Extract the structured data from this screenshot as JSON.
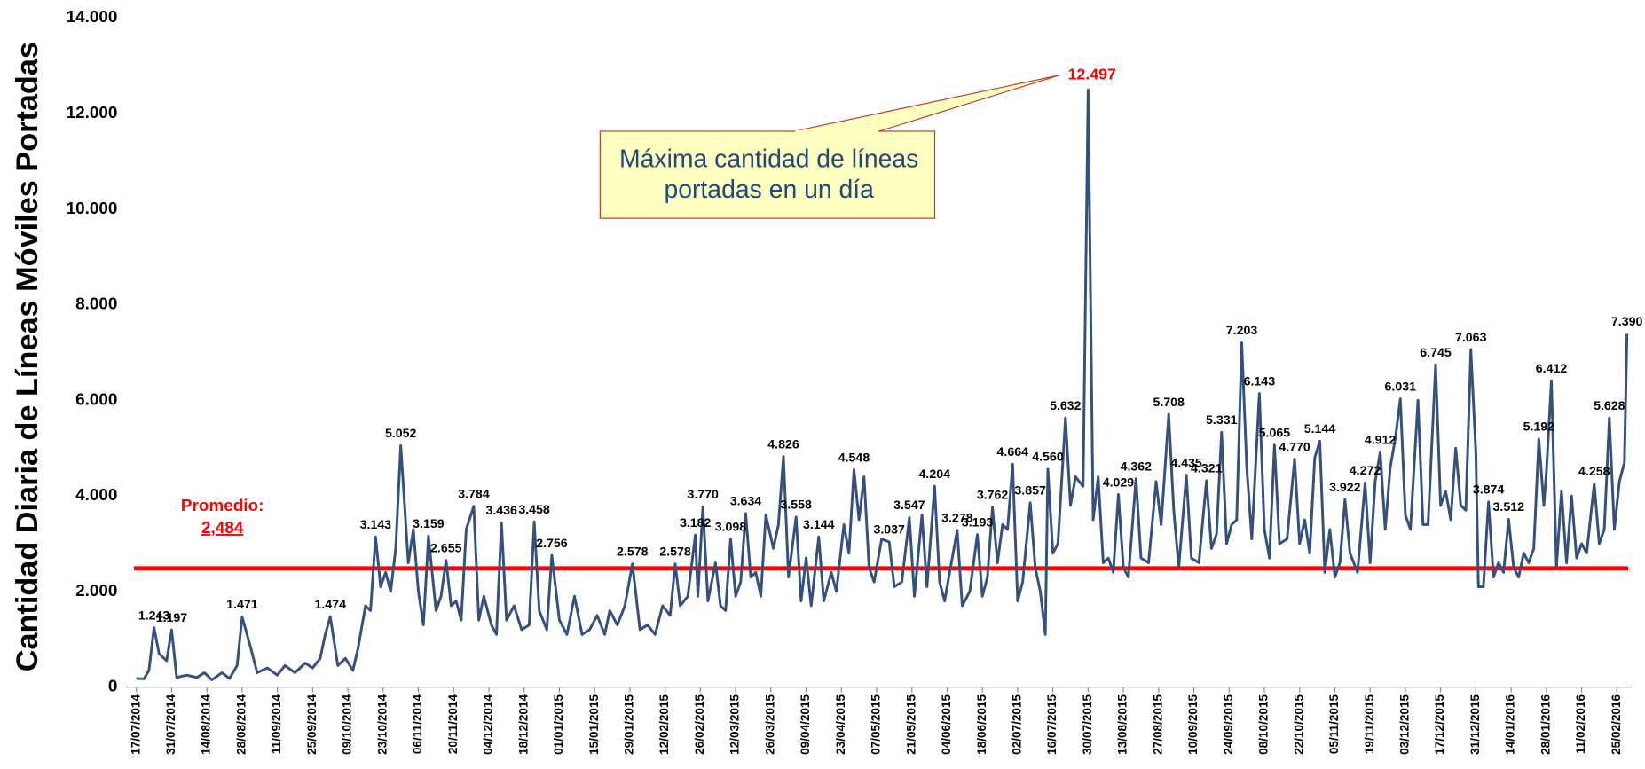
{
  "chart_data": {
    "type": "line",
    "y_label": "Cantidad Diaria de Líneas Móviles Portadas",
    "color": "#34507f",
    "xlim": [
      "16/07/2014",
      "29/02/2016"
    ],
    "xticks": [
      "17/07/2014",
      "31/07/2014",
      "14/08/2014",
      "28/08/2014",
      "11/09/2014",
      "25/09/2014",
      "09/10/2014",
      "23/10/2014",
      "06/11/2014",
      "20/11/2014",
      "04/12/2014",
      "18/12/2014",
      "01/01/2015",
      "15/01/2015",
      "29/01/2015",
      "12/02/2015",
      "26/02/2015",
      "12/03/2015",
      "26/03/2015",
      "09/04/2015",
      "23/04/2015",
      "07/05/2015",
      "21/05/2015",
      "04/06/2015",
      "18/06/2015",
      "02/07/2015",
      "16/07/2015",
      "30/07/2015",
      "13/08/2015",
      "27/08/2015",
      "10/09/2015",
      "24/09/2015",
      "08/10/2015",
      "22/10/2015",
      "05/11/2015",
      "19/11/2015",
      "03/12/2015",
      "17/12/2015",
      "31/12/2015",
      "14/01/2016",
      "28/01/2016",
      "11/02/2016",
      "25/02/2016"
    ],
    "ylim": [
      0,
      14000
    ],
    "yticks": [
      0,
      {
        "value": 2000,
        "label": "2.000"
      },
      {
        "value": 4000,
        "label": "4.000"
      },
      {
        "value": 6000,
        "label": "6.000"
      },
      {
        "value": 8000,
        "label": "8.000"
      },
      {
        "value": 10000,
        "label": "10.000"
      },
      {
        "value": 12000,
        "label": "12.000"
      },
      {
        "value": 14000,
        "label": "14.000"
      }
    ],
    "x": [
      "17/07/2014",
      "20/07/2014",
      "22/07/2014",
      "24/07/2014",
      "26/07/2014",
      "29/07/2014",
      "31/07/2014",
      "02/08/2014",
      "06/08/2014",
      "10/08/2014",
      "13/08/2014",
      "16/08/2014",
      "20/08/2014",
      "23/08/2014",
      "26/08/2014",
      "28/08/2014",
      "31/08/2014",
      "03/09/2014",
      "07/09/2014",
      "11/09/2014",
      "14/09/2014",
      "18/09/2014",
      "22/09/2014",
      "25/09/2014",
      "28/09/2014",
      "30/09/2014",
      "02/10/2014",
      "05/10/2014",
      "08/10/2014",
      "11/10/2014",
      "13/10/2014",
      "16/10/2014",
      "18/10/2014",
      "20/10/2014",
      "22/10/2014",
      "24/10/2014",
      "26/10/2014",
      "28/10/2014",
      "30/10/2014",
      "02/11/2014",
      "04/11/2014",
      "06/11/2014",
      "08/11/2014",
      "10/11/2014",
      "13/11/2014",
      "15/11/2014",
      "17/11/2014",
      "19/11/2014",
      "21/11/2014",
      "23/11/2014",
      "25/11/2014",
      "28/11/2014",
      "30/11/2014",
      "02/12/2014",
      "05/12/2014",
      "07/12/2014",
      "09/12/2014",
      "11/12/2014",
      "14/12/2014",
      "17/12/2014",
      "20/12/2014",
      "22/12/2014",
      "24/12/2014",
      "27/12/2014",
      "29/12/2014",
      "01/01/2015",
      "04/01/2015",
      "07/01/2015",
      "10/01/2015",
      "13/01/2015",
      "16/01/2015",
      "19/01/2015",
      "21/01/2015",
      "24/01/2015",
      "27/01/2015",
      "30/01/2015",
      "02/02/2015",
      "05/02/2015",
      "08/02/2015",
      "11/02/2015",
      "14/02/2015",
      "16/02/2015",
      "18/02/2015",
      "21/02/2015",
      "24/02/2015",
      "25/02/2015",
      "27/02/2015",
      "01/03/2015",
      "04/03/2015",
      "06/03/2015",
      "08/03/2015",
      "10/03/2015",
      "12/03/2015",
      "14/03/2015",
      "16/03/2015",
      "18/03/2015",
      "20/03/2015",
      "22/03/2015",
      "24/03/2015",
      "27/03/2015",
      "29/03/2015",
      "31/03/2015",
      "02/04/2015",
      "05/04/2015",
      "07/04/2015",
      "09/04/2015",
      "11/04/2015",
      "14/04/2015",
      "16/04/2015",
      "19/04/2015",
      "21/04/2015",
      "24/04/2015",
      "26/04/2015",
      "28/04/2015",
      "30/04/2015",
      "02/05/2015",
      "04/05/2015",
      "06/05/2015",
      "09/05/2015",
      "12/05/2015",
      "14/05/2015",
      "17/05/2015",
      "20/05/2015",
      "22/05/2015",
      "25/05/2015",
      "27/05/2015",
      "30/05/2015",
      "01/06/2015",
      "03/06/2015",
      "05/06/2015",
      "08/06/2015",
      "10/06/2015",
      "13/06/2015",
      "16/06/2015",
      "18/06/2015",
      "20/06/2015",
      "22/06/2015",
      "24/06/2015",
      "26/06/2015",
      "28/06/2015",
      "30/06/2015",
      "02/07/2015",
      "04/07/2015",
      "07/07/2015",
      "09/07/2015",
      "11/07/2015",
      "13/07/2015",
      "14/07/2015",
      "16/07/2015",
      "18/07/2015",
      "21/07/2015",
      "23/07/2015",
      "25/07/2015",
      "28/07/2015",
      "30/07/2015",
      "01/08/2015",
      "03/08/2015",
      "05/08/2015",
      "07/08/2015",
      "09/08/2015",
      "11/08/2015",
      "13/08/2015",
      "15/08/2015",
      "18/08/2015",
      "20/08/2015",
      "23/08/2015",
      "26/08/2015",
      "28/08/2015",
      "31/08/2015",
      "02/09/2015",
      "04/09/2015",
      "07/09/2015",
      "09/09/2015",
      "12/09/2015",
      "15/09/2015",
      "17/09/2015",
      "19/09/2015",
      "21/09/2015",
      "23/09/2015",
      "25/09/2015",
      "27/09/2015",
      "29/09/2015",
      "01/10/2015",
      "03/10/2015",
      "06/10/2015",
      "08/10/2015",
      "10/10/2015",
      "12/10/2015",
      "14/10/2015",
      "17/10/2015",
      "20/10/2015",
      "22/10/2015",
      "24/10/2015",
      "26/10/2015",
      "28/10/2015",
      "30/10/2015",
      "01/11/2015",
      "03/11/2015",
      "05/11/2015",
      "07/11/2015",
      "09/11/2015",
      "11/11/2015",
      "14/11/2015",
      "17/11/2015",
      "19/11/2015",
      "21/11/2015",
      "23/11/2015",
      "25/11/2015",
      "27/11/2015",
      "29/11/2015",
      "01/12/2015",
      "03/12/2015",
      "05/12/2015",
      "08/12/2015",
      "10/12/2015",
      "12/12/2015",
      "15/12/2015",
      "17/12/2015",
      "19/12/2015",
      "21/12/2015",
      "23/12/2015",
      "25/12/2015",
      "27/12/2015",
      "29/12/2015",
      "31/12/2015",
      "01/01/2016",
      "03/01/2016",
      "05/01/2016",
      "07/01/2016",
      "09/01/2016",
      "11/01/2016",
      "13/01/2016",
      "15/01/2016",
      "17/01/2016",
      "19/01/2016",
      "21/01/2016",
      "23/01/2016",
      "25/01/2016",
      "27/01/2016",
      "28/01/2016",
      "30/01/2016",
      "01/02/2016",
      "03/02/2016",
      "05/02/2016",
      "07/02/2016",
      "09/02/2016",
      "11/02/2016",
      "13/02/2016",
      "16/02/2016",
      "18/02/2016",
      "20/02/2016",
      "22/02/2016",
      "24/02/2016",
      "26/02/2016",
      "28/02/2016",
      "29/02/2016"
    ],
    "values": [
      180,
      170,
      350,
      1243,
      700,
      550,
      1197,
      200,
      250,
      200,
      300,
      150,
      300,
      180,
      450,
      1471,
      900,
      300,
      400,
      250,
      450,
      300,
      500,
      400,
      600,
      1100,
      1474,
      450,
      600,
      350,
      800,
      1700,
      1600,
      3143,
      2100,
      2400,
      2000,
      2900,
      5052,
      2600,
      3300,
      2000,
      1300,
      3159,
      1600,
      1900,
      2655,
      1700,
      1800,
      1400,
      3300,
      3784,
      1400,
      1900,
      1300,
      1100,
      3436,
      1400,
      1700,
      1200,
      1300,
      3458,
      1600,
      1200,
      2756,
      1400,
      1100,
      1900,
      1100,
      1200,
      1500,
      1100,
      1600,
      1300,
      1700,
      2578,
      1200,
      1300,
      1100,
      1700,
      1500,
      2578,
      1700,
      1900,
      3182,
      1900,
      3770,
      1800,
      2600,
      1700,
      1600,
      3098,
      1900,
      2200,
      3634,
      2300,
      2400,
      1900,
      3600,
      2900,
      3400,
      4826,
      2300,
      3558,
      1800,
      2700,
      1700,
      3144,
      1800,
      2400,
      2000,
      3400,
      2800,
      4548,
      3500,
      4400,
      2500,
      2200,
      3100,
      3037,
      2100,
      2200,
      3547,
      1900,
      3600,
      2100,
      4204,
      2200,
      1800,
      2400,
      3278,
      1700,
      2000,
      3193,
      1900,
      2300,
      3762,
      2600,
      3400,
      3300,
      4664,
      1800,
      2200,
      3857,
      2500,
      2000,
      1100,
      4560,
      2800,
      3000,
      5632,
      3800,
      4400,
      4200,
      12497,
      3500,
      4400,
      2600,
      2700,
      2400,
      4029,
      2500,
      2300,
      4362,
      2700,
      2600,
      4300,
      3400,
      5708,
      3700,
      2500,
      4435,
      2700,
      2600,
      4321,
      2900,
      3200,
      5331,
      3000,
      3400,
      3500,
      7203,
      4600,
      3100,
      6143,
      3300,
      2700,
      5065,
      3000,
      3100,
      4770,
      3000,
      3500,
      2800,
      4800,
      5144,
      2400,
      3300,
      2300,
      2600,
      3922,
      2800,
      2400,
      4272,
      2600,
      4300,
      4912,
      3300,
      4600,
      5200,
      6031,
      3600,
      3300,
      6000,
      3400,
      3400,
      6745,
      3800,
      4100,
      3500,
      5000,
      3800,
      3700,
      7063,
      4900,
      2100,
      2100,
      3874,
      2300,
      2600,
      2400,
      3512,
      2500,
      2300,
      2800,
      2600,
      2900,
      5192,
      3800,
      4500,
      6412,
      2500,
      4100,
      2600,
      4000,
      2700,
      3000,
      2800,
      4258,
      3000,
      3300,
      5628,
      3300,
      4300,
      4700,
      7390
    ],
    "value_labels": [
      null,
      null,
      null,
      "1.243",
      null,
      null,
      "1.197",
      null,
      null,
      null,
      null,
      null,
      null,
      null,
      null,
      "1.471",
      null,
      null,
      null,
      null,
      null,
      null,
      null,
      null,
      null,
      null,
      "1.474",
      null,
      null,
      null,
      null,
      null,
      null,
      "3.143",
      null,
      null,
      null,
      null,
      "5.052",
      null,
      null,
      null,
      null,
      "3.159",
      null,
      null,
      "2.655",
      null,
      null,
      null,
      null,
      "3.784",
      null,
      null,
      null,
      null,
      "3.436",
      null,
      null,
      null,
      null,
      "3.458",
      null,
      null,
      "2.756",
      null,
      null,
      null,
      null,
      null,
      null,
      null,
      null,
      null,
      null,
      "2.578",
      null,
      null,
      null,
      null,
      null,
      "2.578",
      null,
      null,
      "3.182",
      null,
      "3.770",
      null,
      null,
      null,
      null,
      "3.098",
      null,
      null,
      "3.634",
      null,
      null,
      null,
      null,
      null,
      null,
      "4.826",
      null,
      "3.558",
      null,
      null,
      null,
      "3.144",
      null,
      null,
      null,
      null,
      null,
      "4.548",
      null,
      null,
      null,
      null,
      null,
      "3.037",
      null,
      null,
      "3.547",
      null,
      null,
      null,
      "4.204",
      null,
      null,
      null,
      "3.278",
      null,
      null,
      "3.193",
      null,
      null,
      "3.762",
      null,
      null,
      null,
      "4.664",
      null,
      null,
      "3.857",
      null,
      null,
      null,
      "4.560",
      null,
      null,
      "5.632",
      null,
      null,
      null,
      null,
      null,
      null,
      null,
      null,
      null,
      "4.029",
      null,
      null,
      "4.362",
      null,
      null,
      null,
      null,
      "5.708",
      null,
      null,
      "4.435",
      null,
      null,
      "4.321",
      null,
      null,
      "5.331",
      null,
      null,
      null,
      "7.203",
      null,
      null,
      "6.143",
      null,
      null,
      "5.065",
      null,
      null,
      "4.770",
      null,
      null,
      null,
      null,
      "5.144",
      null,
      null,
      null,
      null,
      "3.922",
      null,
      null,
      "4.272",
      null,
      null,
      "4.912",
      null,
      null,
      null,
      "6.031",
      null,
      null,
      null,
      null,
      null,
      "6.745",
      null,
      null,
      null,
      null,
      null,
      null,
      "7.063",
      null,
      null,
      null,
      "3.874",
      null,
      null,
      null,
      "3.512",
      null,
      null,
      null,
      null,
      null,
      "5.192",
      null,
      null,
      "6.412",
      null,
      null,
      null,
      null,
      null,
      null,
      null,
      "4.258",
      null,
      null,
      "5.628",
      null,
      null,
      null,
      "7.390"
    ],
    "average": {
      "label": "Promedio:",
      "value": 2484,
      "value_label": "2,484",
      "color": "#ff0000"
    },
    "callout": {
      "lines": [
        "Máxima cantidad de líneas",
        "portadas en un día"
      ],
      "value": 12497,
      "label": "12.497",
      "color": "#ff0000"
    }
  }
}
